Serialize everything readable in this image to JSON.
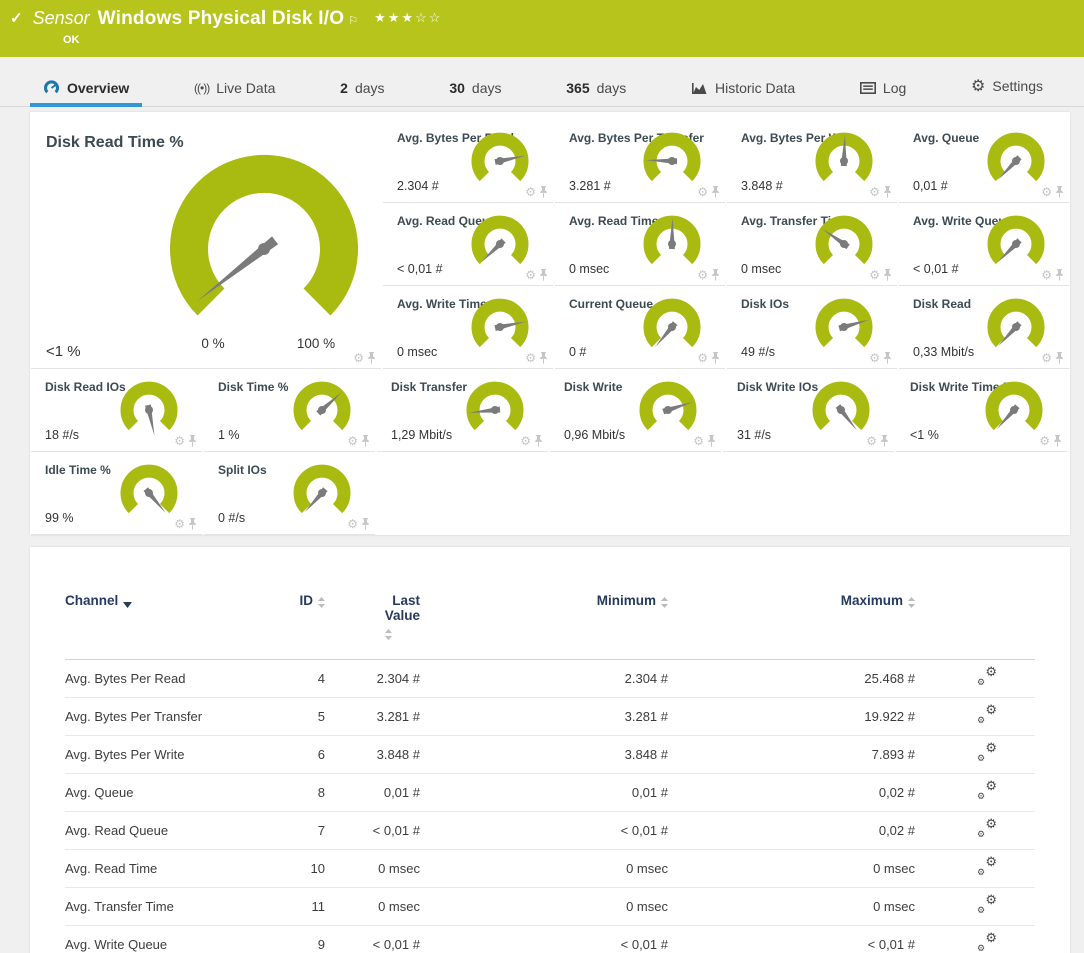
{
  "colors": {
    "accent_green": "#b7c41c",
    "gauge_green": "#a9ba10",
    "needle_gray": "#7b7b7b",
    "active_tab_blue": "#2f99d5",
    "overview_icon_blue": "#1d76ad",
    "table_header_navy": "#253a5e"
  },
  "header": {
    "kind_label": "Sensor",
    "title": "Windows Physical Disk I/O",
    "status": "OK",
    "rating_filled": 3,
    "rating_total": 5
  },
  "tabs": [
    {
      "id": "overview",
      "label": "Overview",
      "icon": "gauge-icon",
      "active": true
    },
    {
      "id": "live-data",
      "label": "Live Data",
      "icon": "broadcast-icon",
      "active": false
    },
    {
      "id": "2-days",
      "number": "2",
      "label": "days",
      "active": false
    },
    {
      "id": "30-days",
      "number": "30",
      "label": "days",
      "active": false
    },
    {
      "id": "365-days",
      "number": "365",
      "label": "days",
      "active": false
    },
    {
      "id": "historic-data",
      "label": "Historic Data",
      "icon": "historic-icon",
      "active": false
    },
    {
      "id": "log",
      "label": "Log",
      "icon": "log-icon",
      "active": false
    },
    {
      "id": "settings",
      "label": "Settings",
      "icon": "settings-icon",
      "active": false
    }
  ],
  "gauges": {
    "main": {
      "title": "Disk Read Time %",
      "value": "<1 %",
      "scale_min": "0 %",
      "scale_max": "100 %",
      "needle_angle": -128
    },
    "small": [
      {
        "title": "Avg. Bytes Per Read",
        "value": "2.304 #",
        "needle_angle": 78
      },
      {
        "title": "Avg. Bytes Per Transfer",
        "value": "3.281 #",
        "needle_angle": -88
      },
      {
        "title": "Avg. Bytes Per Write",
        "value": "3.848 #",
        "needle_angle": 2
      },
      {
        "title": "Avg. Queue",
        "value": "0,01 #",
        "needle_angle": -136
      },
      {
        "title": "Avg. Read Queue",
        "value": "< 0,01 #",
        "needle_angle": -134
      },
      {
        "title": "Avg. Read Time",
        "value": "0 msec",
        "needle_angle": 1
      },
      {
        "title": "Avg. Transfer Time",
        "value": "0 msec",
        "needle_angle": -55
      },
      {
        "title": "Avg. Write Queue",
        "value": "< 0,01 #",
        "needle_angle": -135
      },
      {
        "title": "Avg. Write Time",
        "value": "0 msec",
        "needle_angle": 78
      },
      {
        "title": "Current Queue",
        "value": "0 #",
        "needle_angle": -140
      },
      {
        "title": "Disk IOs",
        "value": "49 #/s",
        "needle_angle": 74
      },
      {
        "title": "Disk Read",
        "value": "0,33 Mbit/s",
        "needle_angle": -137
      },
      {
        "title": "Disk Read IOs",
        "value": "18 #/s",
        "needle_angle": 168
      },
      {
        "title": "Disk Time %",
        "value": "1 %",
        "needle_angle": 48
      },
      {
        "title": "Disk Transfer",
        "value": "1,29 Mbit/s",
        "needle_angle": -96
      },
      {
        "title": "Disk Write",
        "value": "0,96 Mbit/s",
        "needle_angle": 72
      },
      {
        "title": "Disk Write IOs",
        "value": "31 #/s",
        "needle_angle": 142
      },
      {
        "title": "Disk Write Time %",
        "value": "<1 %",
        "needle_angle": -138
      },
      {
        "title": "Idle Time %",
        "value": "99 %",
        "needle_angle": 140
      },
      {
        "title": "Split IOs",
        "value": "0 #/s",
        "needle_angle": -138
      }
    ]
  },
  "table": {
    "columns": [
      {
        "id": "channel",
        "label": "Channel",
        "sort": "dropdown",
        "align": "left"
      },
      {
        "id": "id",
        "label": "ID",
        "sort": "arrows",
        "align": "right"
      },
      {
        "id": "last-value",
        "label": "Last Value",
        "sort": "arrows",
        "align": "right",
        "wrap": true
      },
      {
        "id": "minimum",
        "label": "Minimum",
        "sort": "arrows",
        "align": "right"
      },
      {
        "id": "maximum",
        "label": "Maximum",
        "sort": "arrows",
        "align": "right"
      },
      {
        "id": "actions",
        "label": "",
        "sort": null,
        "align": "center"
      }
    ],
    "rows": [
      {
        "channel": "Avg. Bytes Per Read",
        "id": "4",
        "last": "2.304 #",
        "min": "2.304 #",
        "max": "25.468 #"
      },
      {
        "channel": "Avg. Bytes Per Transfer",
        "id": "5",
        "last": "3.281 #",
        "min": "3.281 #",
        "max": "19.922 #"
      },
      {
        "channel": "Avg. Bytes Per Write",
        "id": "6",
        "last": "3.848 #",
        "min": "3.848 #",
        "max": "7.893 #"
      },
      {
        "channel": "Avg. Queue",
        "id": "8",
        "last": "0,01 #",
        "min": "0,01 #",
        "max": "0,02 #"
      },
      {
        "channel": "Avg. Read Queue",
        "id": "7",
        "last": "< 0,01 #",
        "min": "< 0,01 #",
        "max": "0,02 #"
      },
      {
        "channel": "Avg. Read Time",
        "id": "10",
        "last": "0 msec",
        "min": "0 msec",
        "max": "0 msec"
      },
      {
        "channel": "Avg. Transfer Time",
        "id": "11",
        "last": "0 msec",
        "min": "0 msec",
        "max": "0 msec"
      },
      {
        "channel": "Avg. Write Queue",
        "id": "9",
        "last": "< 0,01 #",
        "min": "< 0,01 #",
        "max": "< 0,01 #"
      }
    ]
  }
}
